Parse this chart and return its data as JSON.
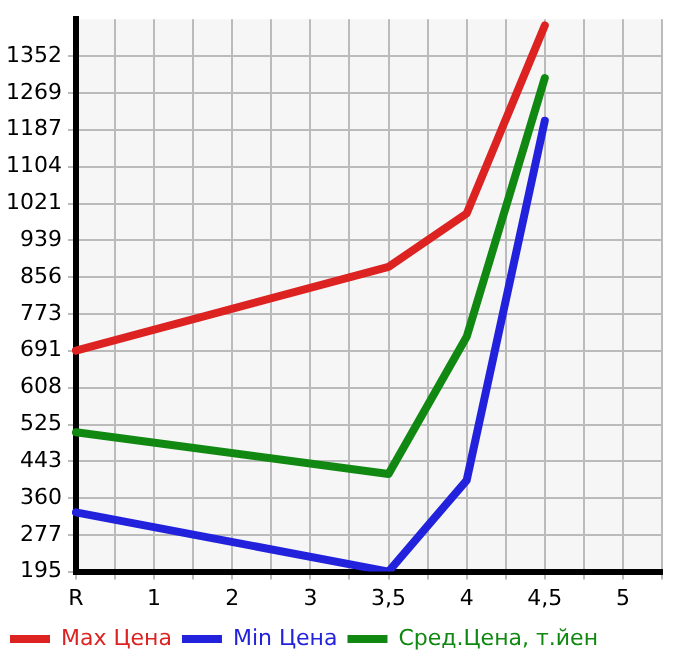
{
  "chart_data": {
    "type": "line",
    "categories": [
      "R",
      null,
      "1",
      null,
      "2",
      null,
      "3",
      null,
      "3,5",
      null,
      "4",
      null,
      "4,5",
      null,
      "5",
      null
    ],
    "series": [
      {
        "name": "Max Цена",
        "color": "#dd2222",
        "values": [
          691,
          null,
          null,
          null,
          null,
          null,
          null,
          null,
          879,
          null,
          999,
          null,
          1421,
          null,
          null,
          null
        ]
      },
      {
        "name": "Min Цена",
        "color": "#2222dd",
        "values": [
          328,
          null,
          null,
          null,
          null,
          null,
          null,
          null,
          195,
          null,
          400,
          null,
          1207,
          null,
          null,
          null
        ]
      },
      {
        "name": "Сред.Цена, т.йен",
        "color": "#118811",
        "values": [
          508,
          null,
          null,
          null,
          null,
          null,
          null,
          null,
          414,
          null,
          722,
          null,
          1303,
          null,
          null,
          null
        ]
      }
    ],
    "ylim": [
      195,
      1435
    ],
    "yticks": [
      195,
      277,
      360,
      443,
      525,
      608,
      691,
      773,
      856,
      939,
      1021,
      1104,
      1187,
      1269,
      1352
    ],
    "grid": true,
    "legend": "bottom",
    "marker": "none",
    "line_style": "solid"
  }
}
